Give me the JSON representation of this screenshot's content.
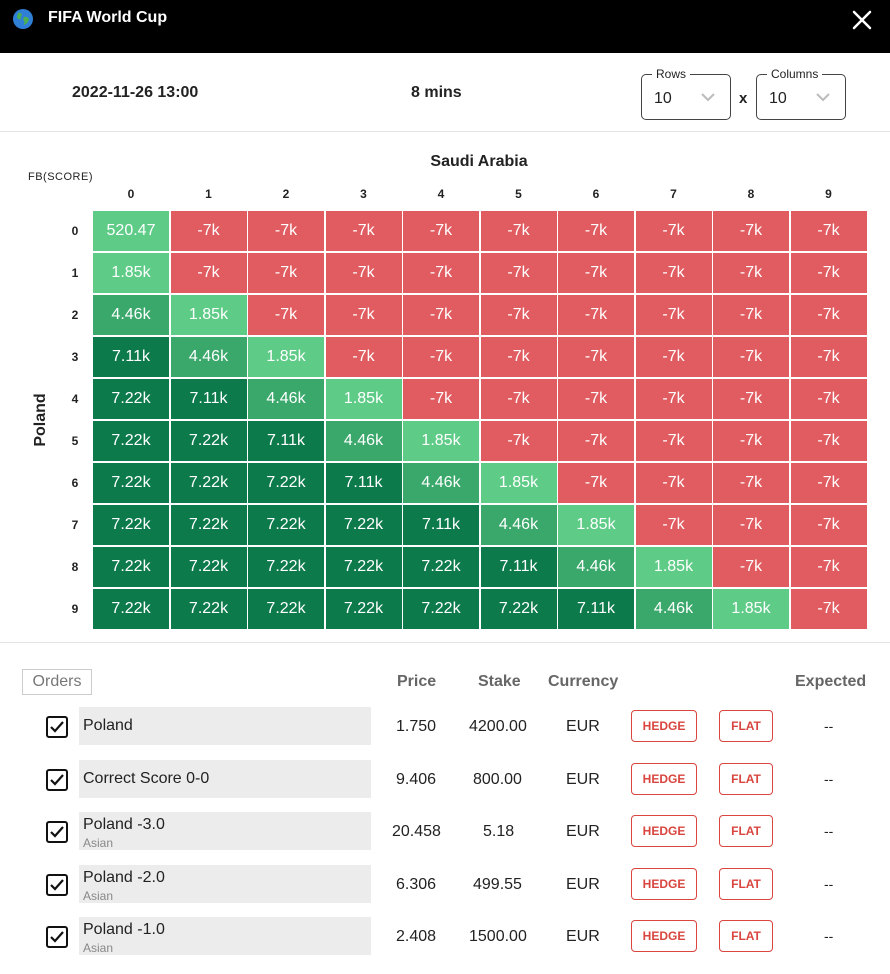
{
  "app": {
    "title": "FIFA World Cup",
    "icons": {
      "globe": "globe-icon",
      "close": "close-icon"
    }
  },
  "info": {
    "datetime": "2022-11-26 13:00",
    "duration": "8 mins",
    "rows": {
      "label": "Rows",
      "value": "10"
    },
    "times": "x",
    "columns": {
      "label": "Columns",
      "value": "10"
    }
  },
  "grid": {
    "x_team": "Saudi Arabia",
    "y_team": "Poland",
    "corner_label": "FB(SCORE)",
    "col_labels": [
      "0",
      "1",
      "2",
      "3",
      "4",
      "5",
      "6",
      "7",
      "8",
      "9"
    ],
    "row_labels": [
      "0",
      "1",
      "2",
      "3",
      "4",
      "5",
      "6",
      "7",
      "8",
      "9"
    ],
    "cells": [
      [
        "520.47",
        "-7k",
        "-7k",
        "-7k",
        "-7k",
        "-7k",
        "-7k",
        "-7k",
        "-7k",
        "-7k"
      ],
      [
        "1.85k",
        "-7k",
        "-7k",
        "-7k",
        "-7k",
        "-7k",
        "-7k",
        "-7k",
        "-7k",
        "-7k"
      ],
      [
        "4.46k",
        "1.85k",
        "-7k",
        "-7k",
        "-7k",
        "-7k",
        "-7k",
        "-7k",
        "-7k",
        "-7k"
      ],
      [
        "7.11k",
        "4.46k",
        "1.85k",
        "-7k",
        "-7k",
        "-7k",
        "-7k",
        "-7k",
        "-7k",
        "-7k"
      ],
      [
        "7.22k",
        "7.11k",
        "4.46k",
        "1.85k",
        "-7k",
        "-7k",
        "-7k",
        "-7k",
        "-7k",
        "-7k"
      ],
      [
        "7.22k",
        "7.22k",
        "7.11k",
        "4.46k",
        "1.85k",
        "-7k",
        "-7k",
        "-7k",
        "-7k",
        "-7k"
      ],
      [
        "7.22k",
        "7.22k",
        "7.22k",
        "7.11k",
        "4.46k",
        "1.85k",
        "-7k",
        "-7k",
        "-7k",
        "-7k"
      ],
      [
        "7.22k",
        "7.22k",
        "7.22k",
        "7.22k",
        "7.11k",
        "4.46k",
        "1.85k",
        "-7k",
        "-7k",
        "-7k"
      ],
      [
        "7.22k",
        "7.22k",
        "7.22k",
        "7.22k",
        "7.22k",
        "7.11k",
        "4.46k",
        "1.85k",
        "-7k",
        "-7k"
      ],
      [
        "7.22k",
        "7.22k",
        "7.22k",
        "7.22k",
        "7.22k",
        "7.22k",
        "7.11k",
        "4.46k",
        "1.85k",
        "-7k"
      ]
    ],
    "colors": {
      "-7k": "#e05c60",
      "520.47": "#5ecb87",
      "1.85k": "#5ecb87",
      "4.46k": "#3aa86b",
      "7.11k": "#0d7a4c",
      "7.22k": "#0d7a4c"
    }
  },
  "orders": {
    "button": "Orders",
    "headers": {
      "price": "Price",
      "stake": "Stake",
      "currency": "Currency",
      "expected": "Expected"
    },
    "items": [
      {
        "checked": true,
        "name": "Poland",
        "sub": "",
        "price": "1.750",
        "stake": "4200.00",
        "currency": "EUR",
        "hedge": "HEDGE",
        "flat": "FLAT",
        "expected": "--"
      },
      {
        "checked": true,
        "name": "Correct Score 0-0",
        "sub": "",
        "price": "9.406",
        "stake": "800.00",
        "currency": "EUR",
        "hedge": "HEDGE",
        "flat": "FLAT",
        "expected": "--"
      },
      {
        "checked": true,
        "name": "Poland -3.0",
        "sub": "Asian",
        "price": "20.458",
        "stake": "5.18",
        "currency": "EUR",
        "hedge": "HEDGE",
        "flat": "FLAT",
        "expected": "--"
      },
      {
        "checked": true,
        "name": "Poland -2.0",
        "sub": "Asian",
        "price": "6.306",
        "stake": "499.55",
        "currency": "EUR",
        "hedge": "HEDGE",
        "flat": "FLAT",
        "expected": "--"
      },
      {
        "checked": true,
        "name": "Poland -1.0",
        "sub": "Asian",
        "price": "2.408",
        "stake": "1500.00",
        "currency": "EUR",
        "hedge": "HEDGE",
        "flat": "FLAT",
        "expected": "--"
      }
    ]
  }
}
